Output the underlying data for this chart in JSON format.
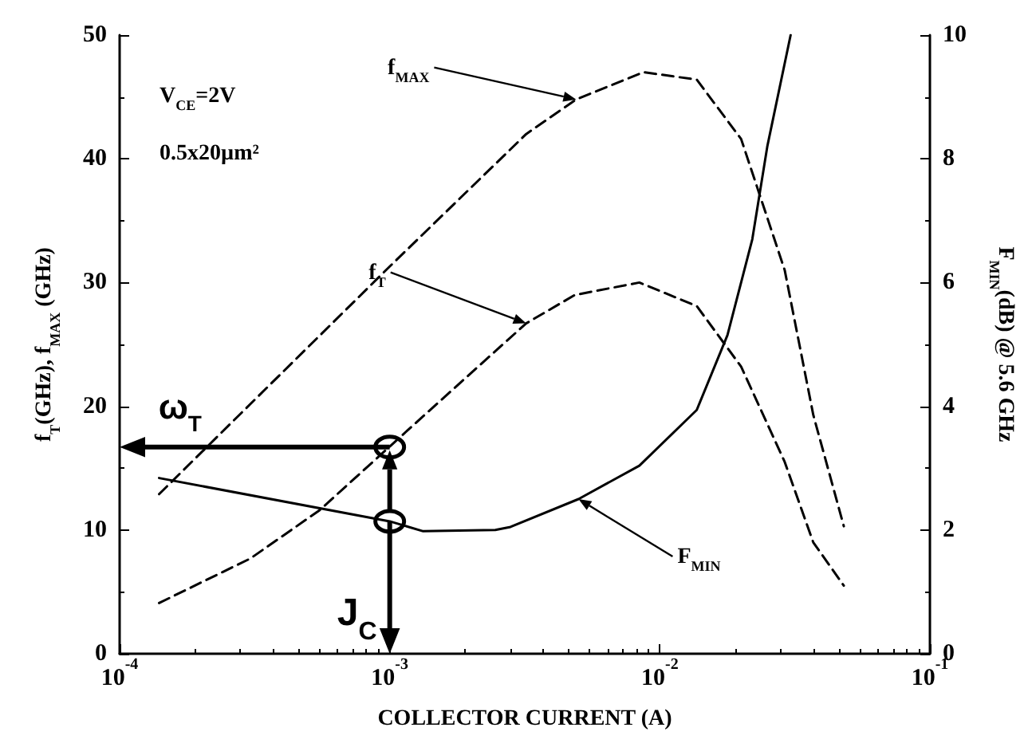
{
  "chart_data": {
    "type": "line",
    "xlabel": "COLLECTOR CURRENT (A)",
    "ylabel": "f$_{T}$(GHz), f$_{MAX}$ (GHz)",
    "y2label": "F$_{MIN}$(dB) @ 5.6 GHz",
    "log": "x",
    "xlim": [
      0.0001,
      0.1
    ],
    "xticks": [
      {
        "value": 0.0001,
        "label": "10$^{-4}$"
      },
      {
        "value": 0.001,
        "label": "10$^{-3}$"
      },
      {
        "value": 0.01,
        "label": "10$^{-2}$"
      },
      {
        "value": 0.1,
        "label": "10$^{-1}$"
      }
    ],
    "ylim": [
      0,
      50
    ],
    "yticks": [
      0,
      10,
      20,
      30,
      40,
      50
    ],
    "y2lim": [
      0,
      10
    ],
    "y2ticks": [
      0,
      2,
      4,
      6,
      8,
      10
    ],
    "grid": false,
    "legend": false,
    "marker": "none",
    "series": [
      {
        "name": "f$_{MAX}$",
        "color": "#000000",
        "line_style": "dashed",
        "x": [
          0.00014,
          0.001,
          0.0032,
          0.0049,
          0.0087,
          0.0137,
          0.02,
          0.029,
          0.037,
          0.048
        ],
        "values": [
          12.9,
          31.3,
          42,
          44.8,
          47,
          46.4,
          41.6,
          31,
          19.3,
          10.3
        ]
      },
      {
        "name": "f$_{T}$",
        "color": "#000000",
        "line_style": "dashed",
        "x": [
          0.00014,
          0.000305,
          0.00055,
          0.0013,
          0.0032,
          0.00485,
          0.0084,
          0.0137,
          0.02,
          0.029,
          0.037,
          0.048
        ],
        "values": [
          4.1,
          7.7,
          11.6,
          19,
          26.7,
          29,
          30,
          28.1,
          23.2,
          15.5,
          9,
          5.5
        ]
      },
      {
        "name": "F$_{MIN}$",
        "axis": "y2",
        "color": "#000000",
        "line_style": "solid",
        "x": [
          0.00014,
          0.001,
          0.00133,
          0.00246,
          0.0028,
          0.005,
          0.0084,
          0.0137,
          0.0178,
          0.022,
          0.025,
          0.0305
        ],
        "values": [
          2.84,
          2.14,
          1.98,
          2.0,
          2.05,
          2.5,
          3.04,
          3.94,
          5.15,
          6.7,
          8.2,
          10
        ]
      }
    ],
    "annotations": [
      "V$_{CE}$=2V",
      "0.5x20µm²",
      {
        "text": "ω$_{T}$",
        "x": 0.001,
        "y": 16.7
      },
      {
        "text": "J$_{C}$",
        "x": 0.001,
        "y": 10.7
      }
    ]
  }
}
